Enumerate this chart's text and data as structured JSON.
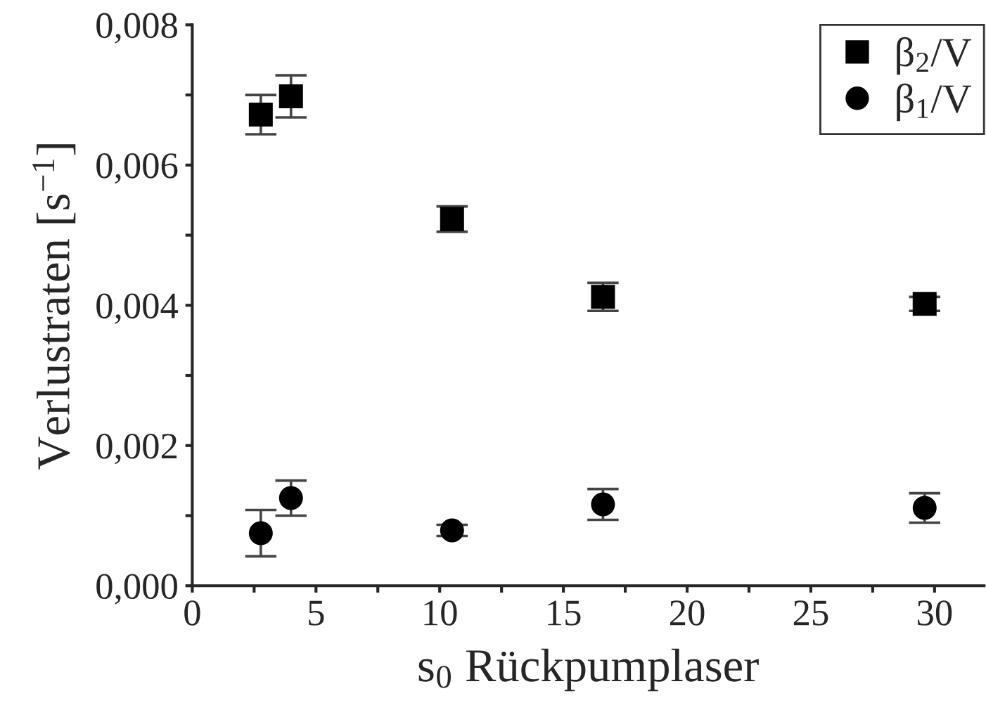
{
  "chart_data": {
    "type": "scatter",
    "xlabel": "s$_{0}$ Rückpumplaser",
    "ylabel": "Verlustraten [s$^{−1}$]",
    "series": [
      {
        "name": "β$_{2}$/V",
        "color": "#000000",
        "marker": "square",
        "x": [
          2.77,
          3.99,
          10.5,
          16.6,
          29.6
        ],
        "values": [
          0.00672,
          0.00698,
          0.00523,
          0.00412,
          0.00402
        ],
        "errors": [
          0.00028,
          0.0003,
          0.00018,
          0.0002,
          0.0001
        ]
      },
      {
        "name": "β$_{1}$/V",
        "color": "#000000",
        "marker": "circle",
        "x": [
          2.77,
          3.99,
          10.5,
          16.6,
          29.6
        ],
        "values": [
          0.00075,
          0.00125,
          0.00079,
          0.00116,
          0.00111
        ],
        "errors": [
          0.00033,
          0.00025,
          8e-05,
          0.00022,
          0.00021
        ]
      }
    ],
    "xlim": [
      0,
      32
    ],
    "ylim": [
      0,
      0.008
    ],
    "xticks": [
      0,
      {
        "value": 2.5,
        "label": null
      },
      5,
      {
        "value": 7.5,
        "label": null
      },
      10,
      {
        "value": 12.5,
        "label": null
      },
      15,
      {
        "value": 17.5,
        "label": null
      },
      20,
      {
        "value": 22.5,
        "label": null
      },
      25,
      {
        "value": 27.5,
        "label": null
      },
      30
    ],
    "yticks": [
      {
        "value": 0,
        "label": "0,000"
      },
      {
        "value": 0.001,
        "label": null
      },
      {
        "value": 0.002,
        "label": "0,002"
      },
      {
        "value": 0.003,
        "label": null
      },
      {
        "value": 0.004,
        "label": "0,004"
      },
      {
        "value": 0.005,
        "label": null
      },
      {
        "value": 0.006,
        "label": "0,006"
      },
      {
        "value": 0.007,
        "label": null
      },
      {
        "value": 0.008,
        "label": "0,008"
      }
    ],
    "grid": false,
    "legend": "top right"
  }
}
